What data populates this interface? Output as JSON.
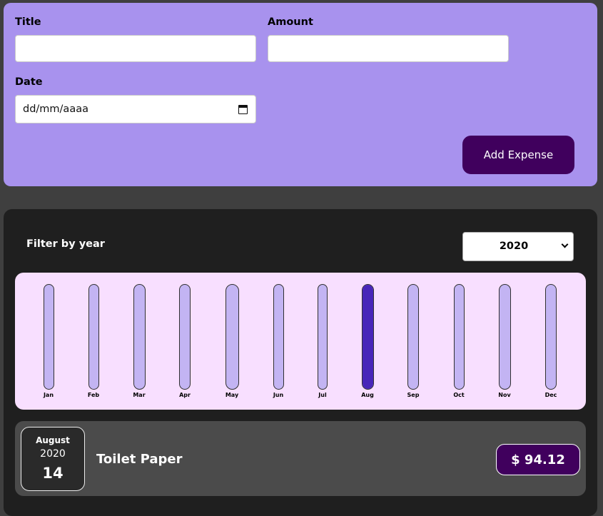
{
  "form": {
    "title_label": "Title",
    "amount_label": "Amount",
    "date_label": "Date",
    "title_value": "",
    "amount_value": "",
    "date_placeholder": "dd/mm/aaaa",
    "submit_label": "Add Expense",
    "calendar_icon": "calendar-icon"
  },
  "filter": {
    "label": "Filter by year",
    "selected_year": "2020",
    "dropdown_icon": "chevron-down-icon"
  },
  "chart_data": {
    "type": "bar",
    "categories": [
      "Jan",
      "Feb",
      "Mar",
      "Apr",
      "May",
      "Jun",
      "Jul",
      "Aug",
      "Sep",
      "Oct",
      "Nov",
      "Dec"
    ],
    "values": [
      0,
      0,
      0,
      0,
      0,
      0,
      0,
      94.12,
      0,
      0,
      0,
      0
    ],
    "max": 94.12,
    "colors": {
      "fill": "#4826b9",
      "empty": "#c3b4f3",
      "background": "#f8dfff"
    }
  },
  "expenses": [
    {
      "month": "August",
      "year": "2020",
      "day": "14",
      "title": "Toilet Paper",
      "price": "$ 94.12"
    }
  ],
  "colors": {
    "form_bg": "#a892ee",
    "accent": "#40005d",
    "panel_bg": "#1f1f1f",
    "item_bg": "#4b4b4b"
  }
}
